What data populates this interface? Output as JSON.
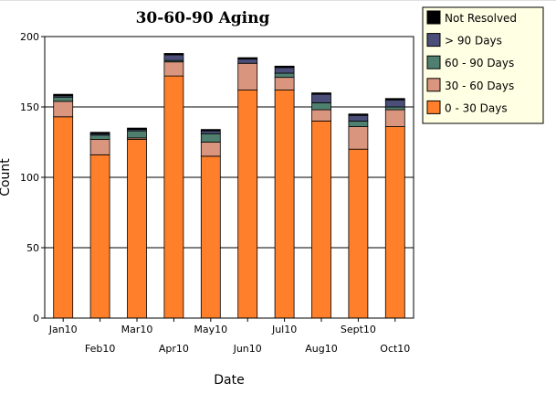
{
  "chart_data": {
    "type": "bar",
    "stacked": true,
    "title": "30-60-90 Aging",
    "xlabel": "Date",
    "ylabel": "Count",
    "ylim": [
      0,
      200
    ],
    "yticks": [
      0,
      50,
      100,
      150,
      200
    ],
    "grid": true,
    "legend_position": "top-right",
    "categories": [
      "Jan10",
      "Feb10",
      "Mar10",
      "Apr10",
      "May10",
      "Jun10",
      "Jul10",
      "Aug10",
      "Sept10",
      "Oct10"
    ],
    "series": [
      {
        "name": "0 - 30 Days",
        "color": "#ff7f2a",
        "values": [
          143,
          116,
          127,
          172,
          115,
          162,
          162,
          140,
          120,
          136
        ]
      },
      {
        "name": "30 - 60 Days",
        "color": "#d9957d",
        "values": [
          11,
          11,
          1,
          10,
          10,
          19,
          9,
          8,
          16,
          12
        ]
      },
      {
        "name": "60 - 90 Days",
        "color": "#4f7f6e",
        "values": [
          3,
          3,
          5,
          1,
          6,
          0,
          3,
          5,
          4,
          2
        ]
      },
      {
        "name": "> 90 Days",
        "color": "#4a4e78",
        "values": [
          1,
          1,
          1,
          4,
          2,
          3,
          4,
          6,
          4,
          5
        ]
      },
      {
        "name": "Not Resolved",
        "color": "#000000",
        "values": [
          1,
          1,
          1,
          1,
          1,
          1,
          1,
          1,
          1,
          1
        ]
      }
    ]
  }
}
